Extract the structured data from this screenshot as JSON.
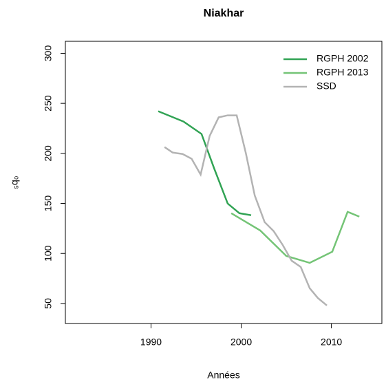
{
  "chart_data": {
    "type": "line",
    "title": "Niakhar",
    "x_label": "Années",
    "y_label": "₅q₀",
    "xlim": [
      1980.5,
      2015.6
    ],
    "xticks": [
      1990,
      2000,
      2010
    ],
    "ylim": [
      30,
      312
    ],
    "yticks": [
      50,
      100,
      150,
      200,
      250,
      300
    ],
    "legend": "top-right",
    "series": [
      {
        "name": "RGPH 2002",
        "color": "#31a354",
        "x": [
          1990.8,
          1993.6,
          1995.6,
          1997.0,
          1998.5,
          1999.8,
          2001.1
        ],
        "values": [
          242.1,
          231.8,
          219.4,
          185,
          149.9,
          140.2,
          138.2
        ]
      },
      {
        "name": "RGPH 2013",
        "color": "#74c476",
        "x": [
          1998.9,
          2002.1,
          2005.0,
          2007.6,
          2010.1,
          2011.8,
          2013.1
        ],
        "values": [
          140.2,
          123,
          97.5,
          90.6,
          101.7,
          141.6,
          136.8
        ]
      },
      {
        "name": "SSD",
        "color": "#b3b3b3",
        "x": [
          1991.5,
          1992.4,
          1993.5,
          1994.5,
          1995.5,
          1996.5,
          1997.5,
          1998.5,
          1999.5,
          2000.5,
          2001.5,
          2002.6,
          2003.6,
          2004.6,
          2005.6,
          2006.6,
          2007.6,
          2008.5,
          2009.5
        ],
        "values": [
          206.3,
          200.8,
          199.4,
          194.6,
          178.8,
          217.4,
          236,
          238,
          238,
          200.8,
          158,
          131.3,
          122.3,
          108.5,
          92.7,
          86.5,
          65.2,
          55.5,
          48
        ]
      }
    ]
  }
}
